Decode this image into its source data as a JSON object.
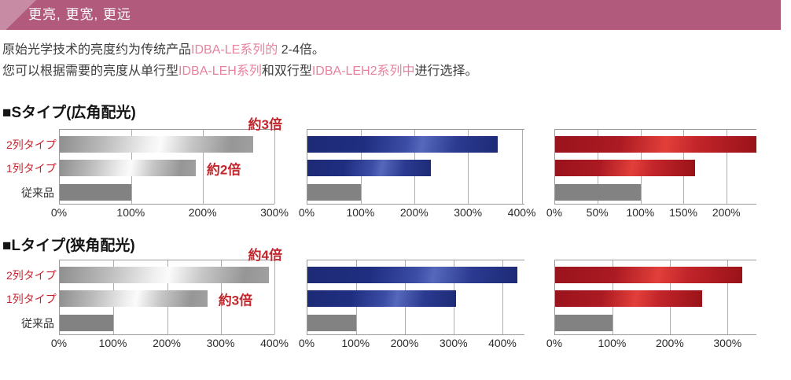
{
  "header": {
    "band_title": "更亮, 更宽, 更远"
  },
  "intro": {
    "line1_pre": "原始光学技术的亮度约为传统产品",
    "line1_em": "IDBA-LE系列的",
    "line1_post": " 2-4倍。",
    "line2_pre": "您可以根据需要的亮度从单行型",
    "line2_em1": "IDBA-LEH系列",
    "line2_mid": "和双行型",
    "line2_em2": "IDBA-LEH2系列中",
    "line2_post": "进行选择。"
  },
  "sections": [
    {
      "title": "■Sタイプ(広角配光)",
      "chart_ids": [
        "S-wide-silver",
        "S-wide-blue",
        "S-wide-red"
      ]
    },
    {
      "title": "■Lタイプ(狭角配光)",
      "chart_ids": [
        "L-narrow-silver",
        "L-narrow-blue",
        "L-narrow-red"
      ]
    }
  ],
  "colors": {
    "band": "#b15a7b",
    "band_accent": "#c78ba3",
    "product_link_pink": "#e8829e",
    "accent_red": "#c0262c",
    "blue_bar": "#1d2a76",
    "red_bar": "#a8161f",
    "conventional_gray": "#828282",
    "body_text": "#3c3c3c"
  },
  "chart_data": [
    {
      "id": "S-wide-silver",
      "type": "bar",
      "orientation": "horizontal",
      "unit": "%",
      "categories": [
        "2列タイプ",
        "1列タイプ",
        "従来品"
      ],
      "values": [
        270,
        190,
        100
      ],
      "xmax": 300,
      "ticks": [
        0,
        100,
        200,
        300
      ],
      "tick_suffix": "%",
      "theme": "silver",
      "bar_styles": [
        "themed",
        "themed",
        "flat"
      ],
      "categories_shown": true,
      "category_colors": [
        "#c8232c",
        "#c8232c",
        "#333333"
      ],
      "annotations": [
        {
          "text": "約3倍",
          "placement": "above-right",
          "row": 0
        },
        {
          "text": "約2倍",
          "placement": "beside",
          "row": 1
        }
      ]
    },
    {
      "id": "S-wide-blue",
      "type": "bar",
      "orientation": "horizontal",
      "unit": "%",
      "categories": [
        "2列タイプ",
        "1列タイプ",
        "従来品"
      ],
      "values": [
        355,
        230,
        100
      ],
      "xmax": 405,
      "ticks": [
        0,
        100,
        200,
        300,
        400
      ],
      "tick_suffix": "%",
      "theme": "blue",
      "bar_styles": [
        "themed",
        "themed",
        "flat"
      ],
      "categories_shown": false,
      "category_colors": [],
      "annotations": []
    },
    {
      "id": "S-wide-red",
      "type": "bar",
      "orientation": "horizontal",
      "unit": "%",
      "categories": [
        "2列タイプ",
        "1列タイプ",
        "従来品"
      ],
      "values": [
        235,
        163,
        100
      ],
      "xmax": 235,
      "ticks": [
        0,
        50,
        100,
        150,
        200
      ],
      "tick_suffix": "%",
      "theme": "red",
      "bar_styles": [
        "themed",
        "themed",
        "flat"
      ],
      "categories_shown": false,
      "category_colors": [],
      "annotations": []
    },
    {
      "id": "L-narrow-silver",
      "type": "bar",
      "orientation": "horizontal",
      "unit": "%",
      "categories": [
        "2列タイプ",
        "1列タイプ",
        "従来品"
      ],
      "values": [
        390,
        275,
        100
      ],
      "xmax": 400,
      "ticks": [
        0,
        100,
        200,
        300,
        400
      ],
      "tick_suffix": "%",
      "theme": "silver",
      "bar_styles": [
        "themed",
        "themed",
        "flat"
      ],
      "categories_shown": true,
      "category_colors": [
        "#c8232c",
        "#c8232c",
        "#333333"
      ],
      "annotations": [
        {
          "text": "約4倍",
          "placement": "above-right",
          "row": 0
        },
        {
          "text": "約3倍",
          "placement": "beside",
          "row": 1
        }
      ]
    },
    {
      "id": "L-narrow-blue",
      "type": "bar",
      "orientation": "horizontal",
      "unit": "%",
      "categories": [
        "2列タイプ",
        "1列タイプ",
        "従来品"
      ],
      "values": [
        430,
        305,
        100
      ],
      "xmax": 445,
      "ticks": [
        0,
        100,
        200,
        300,
        400
      ],
      "tick_suffix": "%",
      "theme": "blue",
      "bar_styles": [
        "themed",
        "themed",
        "flat"
      ],
      "categories_shown": false,
      "category_colors": [],
      "annotations": []
    },
    {
      "id": "L-narrow-red",
      "type": "bar",
      "orientation": "horizontal",
      "unit": "%",
      "categories": [
        "2列タイプ",
        "1列タイプ",
        "従来品"
      ],
      "values": [
        325,
        255,
        100
      ],
      "xmax": 350,
      "ticks": [
        0,
        100,
        200,
        300
      ],
      "tick_suffix": "%",
      "theme": "red",
      "bar_styles": [
        "themed",
        "themed",
        "flat"
      ],
      "categories_shown": false,
      "category_colors": [],
      "annotations": []
    }
  ]
}
